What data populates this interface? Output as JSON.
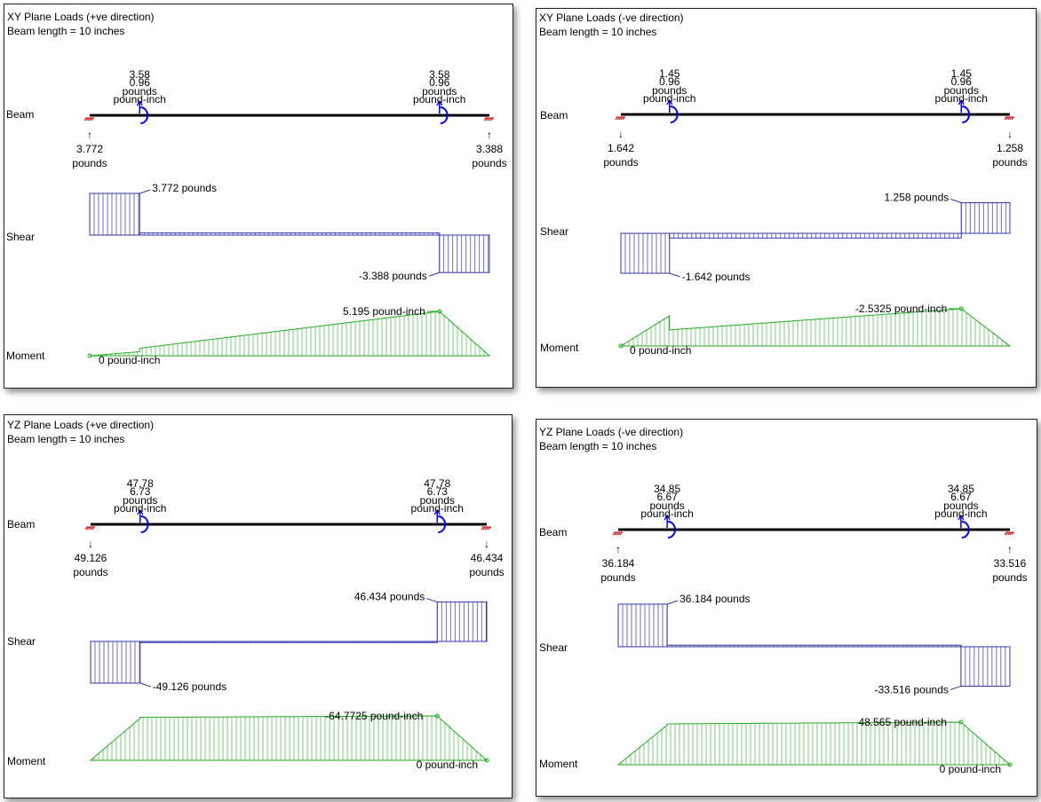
{
  "colors": {
    "beam": "#000000",
    "support": "#cc0000",
    "moment_load": "#0000ee",
    "shear": "#3333aa",
    "moment": "#22aa22"
  },
  "panels": [
    {
      "title": "XY Plane Loads (+ve direction)",
      "length_text": "Beam length = 10 inches",
      "row_labels": {
        "beam": "Beam",
        "shear": "Shear",
        "moment": "Moment"
      },
      "loads": [
        {
          "pos": 0.125,
          "force": "3.58",
          "moment": "0.96",
          "force_unit": "pounds",
          "moment_unit": "pound-inch"
        },
        {
          "pos": 0.875,
          "force": "3.58",
          "moment": "0.96",
          "force_unit": "pounds",
          "moment_unit": "pound-inch"
        }
      ],
      "reactions": [
        {
          "side": "left",
          "value": "3.772",
          "unit": "pounds",
          "arrow": "↑"
        },
        {
          "side": "right",
          "value": "3.388",
          "unit": "pounds",
          "arrow": "↑"
        }
      ],
      "shear": {
        "v": [
          3.772,
          0.192,
          -3.388
        ],
        "max_label": "3.772 pounds",
        "min_label": "-3.388 pounds"
      },
      "moment": {
        "v": [
          0,
          0.4715,
          0.8795,
          5.195,
          0
        ],
        "max_label": "5.195 pound-inch",
        "zero_label": "0 pound-inch"
      }
    },
    {
      "title": "XY Plane Loads (-ve direction)",
      "length_text": "Beam length = 10 inches",
      "row_labels": {
        "beam": "Beam",
        "shear": "Shear",
        "moment": "Moment"
      },
      "loads": [
        {
          "pos": 0.125,
          "force": "1.45",
          "moment": "0.96",
          "force_unit": "pounds",
          "moment_unit": "pound-inch"
        },
        {
          "pos": 0.875,
          "force": "1.45",
          "moment": "0.96",
          "force_unit": "pounds",
          "moment_unit": "pound-inch"
        }
      ],
      "reactions": [
        {
          "side": "left",
          "value": "1.642",
          "unit": "pounds",
          "arrow": "↓"
        },
        {
          "side": "right",
          "value": "1.258",
          "unit": "pounds",
          "arrow": "↓"
        }
      ],
      "shear": {
        "v": [
          -1.642,
          -0.192,
          1.258
        ],
        "max_label": "1.258 pounds",
        "min_label": "-1.642 pounds"
      },
      "moment": {
        "v": [
          0,
          -2.0525,
          -1.0925,
          -2.5325,
          0
        ],
        "max_label": "-2.5325 pound-inch",
        "zero_label": "0 pound-inch"
      }
    },
    {
      "title": "YZ Plane Loads (+ve direction)",
      "length_text": "Beam length = 10 inches",
      "row_labels": {
        "beam": "Beam",
        "shear": "Shear",
        "moment": "Moment"
      },
      "loads": [
        {
          "pos": 0.125,
          "force": "47.78",
          "moment": "6.73",
          "force_unit": "pounds",
          "moment_unit": "pound-inch"
        },
        {
          "pos": 0.875,
          "force": "47.78",
          "moment": "6.73",
          "force_unit": "pounds",
          "moment_unit": "pound-inch"
        }
      ],
      "reactions": [
        {
          "side": "left",
          "value": "49.126",
          "unit": "pounds",
          "arrow": "↓"
        },
        {
          "side": "right",
          "value": "46.434",
          "unit": "pounds",
          "arrow": "↓"
        }
      ],
      "shear": {
        "v": [
          -49.126,
          -1.346,
          46.434
        ],
        "max_label": "46.434 pounds",
        "min_label": "-49.126 pounds"
      },
      "moment": {
        "v": [
          0,
          -61.4075,
          -62.7535,
          -64.7725,
          0
        ],
        "max_label": "-64.7725 pound-inch",
        "zero_label": "0 pound-inch"
      }
    },
    {
      "title": "YZ Plane Loads (-ve direction)",
      "length_text": "Beam length = 10 inches",
      "row_labels": {
        "beam": "Beam",
        "shear": "Shear",
        "moment": "Moment"
      },
      "loads": [
        {
          "pos": 0.125,
          "force": "34.85",
          "moment": "6.67",
          "force_unit": "pounds",
          "moment_unit": "pound-inch"
        },
        {
          "pos": 0.875,
          "force": "34.85",
          "moment": "6.67",
          "force_unit": "pounds",
          "moment_unit": "pound-inch"
        }
      ],
      "reactions": [
        {
          "side": "left",
          "value": "36.184",
          "unit": "pounds",
          "arrow": "↑"
        },
        {
          "side": "right",
          "value": "33.516",
          "unit": "pounds",
          "arrow": "↑"
        }
      ],
      "shear": {
        "v": [
          36.184,
          1.334,
          -33.516
        ],
        "max_label": "36.184 pounds",
        "min_label": "-33.516 pounds"
      },
      "moment": {
        "v": [
          0,
          45.23,
          46.565,
          48.565,
          0
        ],
        "max_label": "48.565 pound-inch",
        "zero_label": "0 pound-inch"
      }
    }
  ]
}
